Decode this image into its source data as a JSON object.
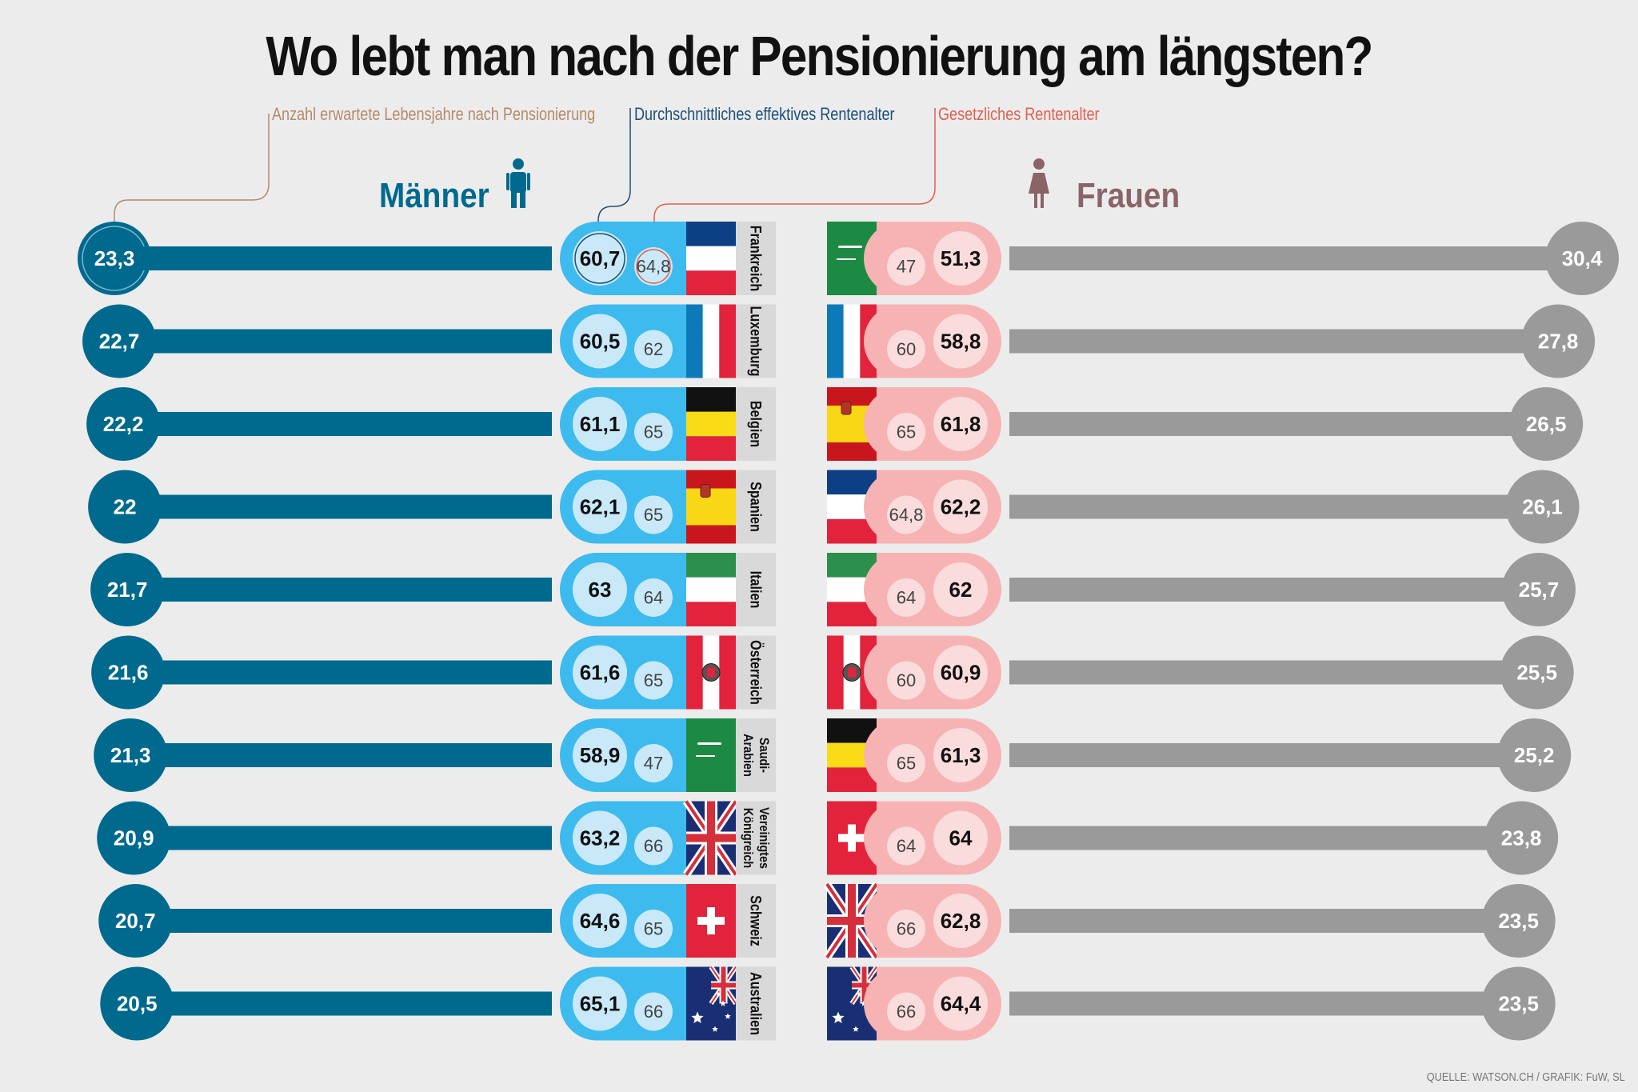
{
  "title": "Wo lebt man nach der Pensionierung am längsten?",
  "legend": {
    "years_after": "Anzahl erwartete Lebensjahre nach Pensionierung",
    "effective_age": "Durchschnittliches effektives Rentenalter",
    "legal_age": "Gesetzliches Rentenalter"
  },
  "labels": {
    "men": "Männer",
    "women": "Frauen"
  },
  "source": "QUELLE: WATSON.CH / GRAFIK: FuW, SL",
  "colors": {
    "men_dark": "#006a8e",
    "men_pill": "#3dbbee",
    "men_circle": "#c9e9f8",
    "women_dark": "#8b6468",
    "women_pill": "#f7b3b3",
    "women_circle": "#fbdcdc",
    "women_bar": "#9a9a9a",
    "legend_years": "#b58a6a",
    "legend_effective": "#1b4f7a",
    "legend_legal": "#e06050"
  },
  "chart_data": [
    {
      "type": "bar",
      "title": "Männer",
      "categories": [
        "Frankreich",
        "Luxemburg",
        "Belgien",
        "Spanien",
        "Italien",
        "Österreich",
        "Saudi-Arabien",
        "Vereinigtes Königreich",
        "Schweiz",
        "Australien"
      ],
      "flags": [
        "france",
        "luxembourg",
        "belgium",
        "spain",
        "italy",
        "austria",
        "saudi",
        "uk",
        "switzerland",
        "australia"
      ],
      "series": [
        {
          "name": "Anzahl erwartete Lebensjahre nach Pensionierung",
          "values": [
            23.3,
            22.7,
            22.2,
            22,
            21.7,
            21.6,
            21.3,
            20.9,
            20.7,
            20.5
          ],
          "labels": [
            "23,3",
            "22,7",
            "22,2",
            "22",
            "21,7",
            "21,6",
            "21,3",
            "20,9",
            "20,7",
            "20,5"
          ]
        },
        {
          "name": "Durchschnittliches effektives Rentenalter",
          "values": [
            60.7,
            60.5,
            61.1,
            62.1,
            63,
            61.6,
            58.9,
            63.2,
            64.6,
            65.1
          ],
          "labels": [
            "60,7",
            "60,5",
            "61,1",
            "62,1",
            "63",
            "61,6",
            "58,9",
            "63,2",
            "64,6",
            "65,1"
          ]
        },
        {
          "name": "Gesetzliches Rentenalter",
          "values": [
            64.8,
            62,
            65,
            65,
            64,
            65,
            47,
            66,
            65,
            66
          ],
          "labels": [
            "64,8",
            "62",
            "65",
            "65",
            "64",
            "65",
            "47",
            "66",
            "65",
            "66"
          ]
        }
      ]
    },
    {
      "type": "bar",
      "title": "Frauen",
      "flags": [
        "saudi",
        "luxembourg",
        "spain",
        "france",
        "italy",
        "austria",
        "belgium",
        "switzerland",
        "uk",
        "australia"
      ],
      "series": [
        {
          "name": "Anzahl erwartete Lebensjahre nach Pensionierung",
          "values": [
            30.4,
            27.8,
            26.5,
            26.1,
            25.7,
            25.5,
            25.2,
            23.8,
            23.5,
            23.5
          ],
          "labels": [
            "30,4",
            "27,8",
            "26,5",
            "26,1",
            "25,7",
            "25,5",
            "25,2",
            "23,8",
            "23,5",
            "23,5"
          ]
        },
        {
          "name": "Durchschnittliches effektives Rentenalter",
          "values": [
            51.3,
            58.8,
            61.8,
            62.2,
            62,
            60.9,
            61.3,
            64,
            62.8,
            64.4
          ],
          "labels": [
            "51,3",
            "58,8",
            "61,8",
            "62,2",
            "62",
            "60,9",
            "61,3",
            "64",
            "62,8",
            "64,4"
          ]
        },
        {
          "name": "Gesetzliches Rentenalter",
          "values": [
            47,
            60,
            65,
            64.8,
            64,
            60,
            65,
            64,
            66,
            66
          ],
          "labels": [
            "47",
            "60",
            "65",
            "64,8",
            "64",
            "60",
            "65",
            "64",
            "66",
            "66"
          ]
        }
      ]
    }
  ]
}
